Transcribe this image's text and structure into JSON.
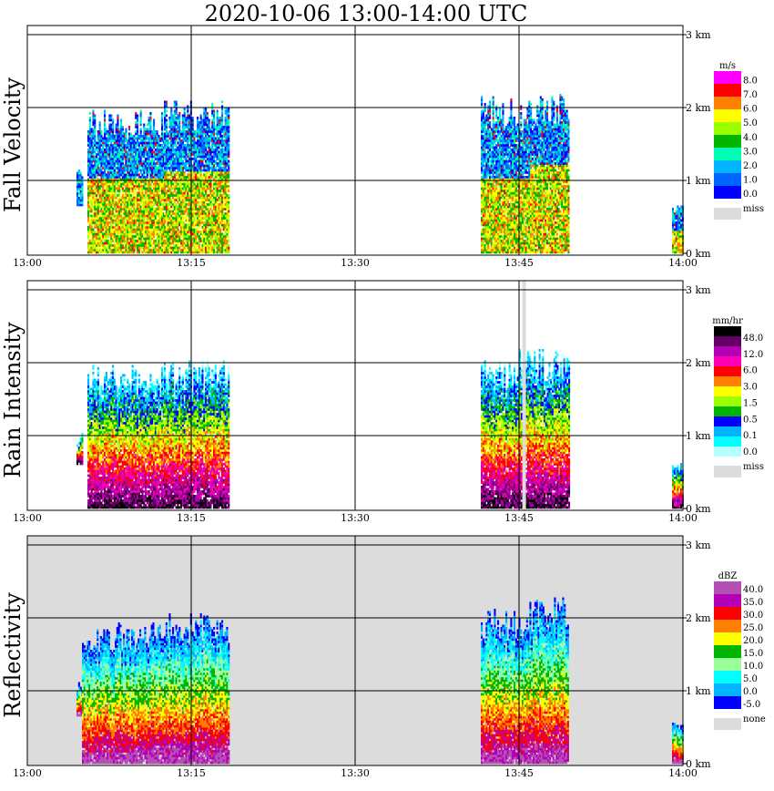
{
  "title": "2020-10-06   13:00-14:00 UTC",
  "time_labels": [
    "13:00",
    "13:15",
    "13:30",
    "13:45",
    "14:00"
  ],
  "height_labels": [
    "3 km",
    "2 km",
    "1 km",
    "0 km"
  ],
  "chart_data": [
    {
      "type": "heatmap",
      "ylabel": "Fall Velocity",
      "x": {
        "range": [
          "13:00",
          "14:00"
        ],
        "ticks": [
          "13:00",
          "13:15",
          "13:30",
          "13:45",
          "14:00"
        ]
      },
      "y": {
        "range_km": [
          0,
          3
        ],
        "ticks": [
          "0 km",
          "1 km",
          "2 km",
          "3 km"
        ]
      },
      "grid": true,
      "colorbar": {
        "unit": "m/s",
        "levels": [
          "8.0",
          "7.0",
          "6.0",
          "5.0",
          "4.0",
          "3.0",
          "2.0",
          "1.0",
          "0.0"
        ],
        "colors": [
          "#ff00ff",
          "#ff0000",
          "#ff7f00",
          "#ffff00",
          "#9aff00",
          "#00b400",
          "#00ffb4",
          "#00b4ff",
          "#0064ff",
          "#0000ff"
        ],
        "missing_label": "miss",
        "missing_color": "#dcdcdc"
      },
      "background_color": "#ffffff",
      "echoes": [
        {
          "start_min": 4.5,
          "end_min": 5.0,
          "top_km": 1.15,
          "bottom_km": 0.65,
          "core_km": 0.3
        },
        {
          "start_min": 5.5,
          "end_min": 12.5,
          "top_km": 1.9,
          "bottom_km": 0,
          "core_km": 1.0
        },
        {
          "start_min": 12.5,
          "end_min": 18.5,
          "top_km": 2.0,
          "bottom_km": 0,
          "core_km": 1.1
        },
        {
          "start_min": 41.5,
          "end_min": 46.0,
          "top_km": 2.05,
          "bottom_km": 0,
          "core_km": 1.0
        },
        {
          "start_min": 46.0,
          "end_min": 49.5,
          "top_km": 2.15,
          "bottom_km": 0,
          "core_km": 1.2
        },
        {
          "start_min": 59.0,
          "end_min": 60.0,
          "top_km": 0.65,
          "bottom_km": 0,
          "core_km": 0.3
        }
      ]
    },
    {
      "type": "heatmap",
      "ylabel": "Rain Intensity",
      "x": {
        "range": [
          "13:00",
          "14:00"
        ],
        "ticks": [
          "13:00",
          "13:15",
          "13:30",
          "13:45",
          "14:00"
        ]
      },
      "y": {
        "range_km": [
          0,
          3
        ],
        "ticks": [
          "0 km",
          "1 km",
          "2 km",
          "3 km"
        ]
      },
      "grid": true,
      "colorbar": {
        "unit": "mm/hr",
        "levels": [
          "48.0",
          "12.0",
          "6.0",
          "3.0",
          "1.5",
          "0.5",
          "0.1",
          "0.0"
        ],
        "colors": [
          "#000000",
          "#640064",
          "#b400b4",
          "#ff00b4",
          "#ff0000",
          "#ff7f00",
          "#ffff00",
          "#9aff00",
          "#00b400",
          "#0000ff",
          "#00b4ff",
          "#00ffff",
          "#b4ffff"
        ],
        "missing_label": "miss",
        "missing_color": "#dcdcdc"
      },
      "background_color": "#ffffff",
      "missing_column_min": 45.3,
      "echoes": [
        {
          "start_min": 4.5,
          "end_min": 5.0,
          "top_km": 1.0,
          "bottom_km": 0.6,
          "core_km": 0.3
        },
        {
          "start_min": 5.5,
          "end_min": 12.5,
          "top_km": 1.9,
          "bottom_km": 0,
          "core_km": 1.2
        },
        {
          "start_min": 12.5,
          "end_min": 18.5,
          "top_km": 1.95,
          "bottom_km": 0,
          "core_km": 1.3
        },
        {
          "start_min": 41.5,
          "end_min": 45.0,
          "top_km": 1.95,
          "bottom_km": 0,
          "core_km": 1.1
        },
        {
          "start_min": 45.0,
          "end_min": 49.5,
          "top_km": 2.1,
          "bottom_km": 0,
          "core_km": 1.4
        },
        {
          "start_min": 59.0,
          "end_min": 60.0,
          "top_km": 0.6,
          "bottom_km": 0,
          "core_km": 0.3
        }
      ]
    },
    {
      "type": "heatmap",
      "ylabel": "Reflectivity",
      "x": {
        "range": [
          "13:00",
          "14:00"
        ],
        "ticks": [
          "13:00",
          "13:15",
          "13:30",
          "13:45",
          "14:00"
        ]
      },
      "y": {
        "range_km": [
          0,
          3
        ],
        "ticks": [
          "0 km",
          "1 km",
          "2 km",
          "3 km"
        ]
      },
      "grid": true,
      "colorbar": {
        "unit": "dBZ",
        "levels": [
          "40.0",
          "35.0",
          "30.0",
          "25.0",
          "20.0",
          "15.0",
          "10.0",
          "5.0",
          "0.0",
          "-5.0"
        ],
        "colors": [
          "#b450b4",
          "#b400b4",
          "#ff0000",
          "#ff7f00",
          "#ffff00",
          "#00b400",
          "#9aff9a",
          "#00ffff",
          "#00b4ff",
          "#0000ff"
        ],
        "missing_label": "none",
        "missing_color": "#dcdcdc"
      },
      "background_color": "#dcdcdc",
      "echoes": [
        {
          "start_min": 4.5,
          "end_min": 5.0,
          "top_km": 1.15,
          "bottom_km": 0.65,
          "core_km": 0.3
        },
        {
          "start_min": 5.0,
          "end_min": 12.5,
          "top_km": 1.85,
          "bottom_km": 0,
          "core_km": 0.9
        },
        {
          "start_min": 12.5,
          "end_min": 18.5,
          "top_km": 2.0,
          "bottom_km": 0,
          "core_km": 1.2
        },
        {
          "start_min": 41.5,
          "end_min": 45.5,
          "top_km": 2.05,
          "bottom_km": 0,
          "core_km": 1.3
        },
        {
          "start_min": 45.5,
          "end_min": 49.5,
          "top_km": 2.2,
          "bottom_km": 0,
          "core_km": 1.7
        },
        {
          "start_min": 59.0,
          "end_min": 60.0,
          "top_km": 0.6,
          "bottom_km": 0,
          "core_km": 0.3
        }
      ]
    }
  ]
}
